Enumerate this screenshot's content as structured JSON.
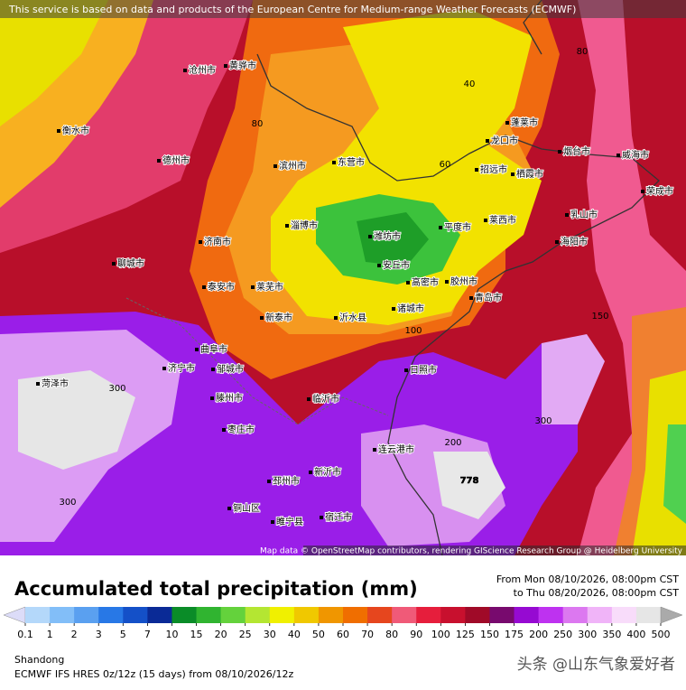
{
  "banner": "This service is based on data and products of the European Centre for Medium-range Weather Forecasts (ECMWF)",
  "attribution": "Map data © OpenStreetMap contributors, rendering GIScience Research Group @ Heidelberg University",
  "title": "Accumulated total precipitation (mm)",
  "period": {
    "from": "From Mon 08/10/2026, 08:00pm CST",
    "to": "to Thu 08/20/2026, 08:00pm CST"
  },
  "legend": {
    "labels": [
      "0.1",
      "1",
      "2",
      "3",
      "5",
      "7",
      "10",
      "15",
      "20",
      "25",
      "30",
      "40",
      "50",
      "60",
      "70",
      "80",
      "90",
      "100",
      "125",
      "150",
      "175",
      "200",
      "250",
      "300",
      "350",
      "400",
      "500"
    ],
    "colors": [
      "#dcdcf8",
      "#b4d8fa",
      "#82bef8",
      "#5aa0f0",
      "#2878e6",
      "#1450c8",
      "#0a2a96",
      "#0a8c28",
      "#30b430",
      "#64d23c",
      "#b4e632",
      "#f0f000",
      "#f0c800",
      "#f09600",
      "#f06e00",
      "#e6461e",
      "#f05a78",
      "#e61e3c",
      "#c8102e",
      "#a00a28",
      "#780a6e",
      "#960ad2",
      "#be32f0",
      "#dc78f0",
      "#f0b4f8",
      "#f8dcfa",
      "#e6e6e6",
      "#c8c8c8",
      "#aaaaaa"
    ]
  },
  "region": "Shandong",
  "model": "ECMWF IFS HRES 0z/12z (15 days) from 08/10/2026/12z",
  "watermark": "头条 @山东气象爱好者",
  "cities": [
    "济南市",
    "泰安市",
    "淄博市",
    "潍坊市",
    "青岛市",
    "烟台市",
    "威海市",
    "日照市",
    "临沂市",
    "枣庄市",
    "济宁市",
    "菏泽市",
    "聊城市",
    "德州市",
    "滨州市",
    "东营市",
    "莱芜市",
    "新泰市",
    "沂水县",
    "平度市",
    "莱西市",
    "胶州市",
    "蓬莱市",
    "龙口市",
    "招远市",
    "栖霞市",
    "乳山市",
    "海阳市",
    "荣成市",
    "连云港市",
    "邳州市",
    "新沂市",
    "宿迁市",
    "睢宁县",
    "铜山区",
    "高密市",
    "诸城市",
    "安丘市",
    "邹城市",
    "曲阜市",
    "滕州市",
    "沧州市",
    "黄骅市",
    "衡水市"
  ],
  "contours": [
    "40",
    "60",
    "80",
    "80",
    "100",
    "150",
    "200",
    "300",
    "300",
    "300",
    "778"
  ]
}
